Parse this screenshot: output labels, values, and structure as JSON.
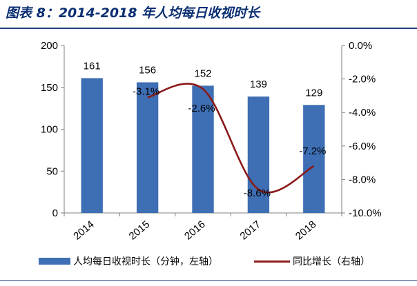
{
  "figure_title": "图表 8：2014-2018 年人均每日收视时长",
  "colors": {
    "bar": "#3e6eb4",
    "line": "#8b1a1a",
    "title": "#0b2f73"
  },
  "chart_data": {
    "type": "bar",
    "categories": [
      "2014",
      "2015",
      "2016",
      "2017",
      "2018"
    ],
    "series": [
      {
        "name": "人均每日收视时长（分钟，左轴）",
        "type": "bar",
        "axis": "left",
        "values": [
          161,
          156,
          152,
          139,
          129
        ],
        "labels": [
          "161",
          "156",
          "152",
          "139",
          "129"
        ]
      },
      {
        "name": "同比增长（右轴）",
        "type": "line",
        "axis": "right",
        "values": [
          null,
          -3.1,
          -2.6,
          -8.6,
          -7.2
        ],
        "labels": [
          "",
          "-3.1%",
          "-2.6%",
          "-8.6%",
          "-7.2%"
        ]
      }
    ],
    "left_axis": {
      "min": 0,
      "max": 200,
      "ticks": [
        "0",
        "50",
        "100",
        "150",
        "200"
      ]
    },
    "right_axis": {
      "min": -10,
      "max": 0,
      "ticks": [
        "0.0%",
        "-2.0%",
        "-4.0%",
        "-6.0%",
        "-8.0%",
        "-10.0%"
      ]
    },
    "legend": [
      "人均每日收视时长（分钟，左轴）",
      "同比增长（右轴）"
    ],
    "legend_position": "bottom"
  }
}
